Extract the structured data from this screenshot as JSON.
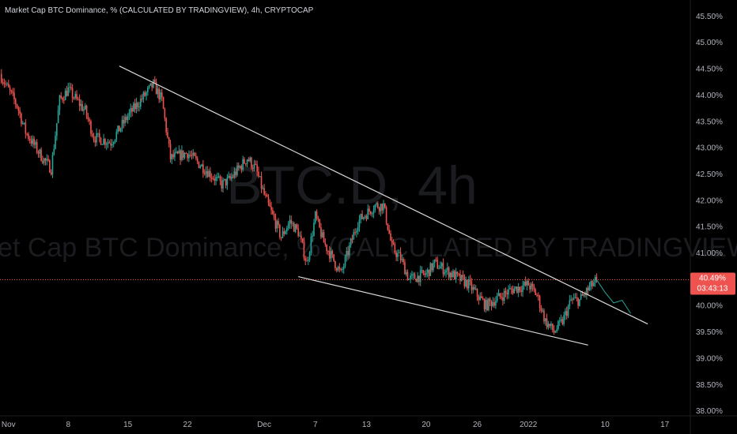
{
  "header": {
    "title": "Market Cap BTC Dominance, % (CALCULATED BY TRADINGVIEW), 4h, CRYPTOCAP"
  },
  "watermark": {
    "symbol": "BTC.D, 4h",
    "description": "Market Cap BTC Dominance, % (CALCULATED BY TRADINGVIEW)"
  },
  "price_badge": {
    "value": "40.49%",
    "countdown": "03:43:13"
  },
  "colors": {
    "up": "#26a69a",
    "down": "#ef5350",
    "trendline": "#d9d9d9",
    "price_line": "#ef5350",
    "axis_text": "#b2b5be"
  },
  "chart_data": {
    "type": "candlestick",
    "title": "Market Cap BTC Dominance, % (CALCULATED BY TRADINGVIEW), 4h, CRYPTOCAP",
    "ylim": [
      37.98,
      45.58
    ],
    "y_ticks": [
      "45.50%",
      "45.00%",
      "44.50%",
      "44.00%",
      "43.50%",
      "43.00%",
      "42.50%",
      "42.00%",
      "41.50%",
      "41.00%",
      "40.50%",
      "40.00%",
      "39.50%",
      "39.00%",
      "38.50%",
      "38.00%"
    ],
    "y_tick_values": [
      45.5,
      45.0,
      44.5,
      44.0,
      43.5,
      43.0,
      42.5,
      42.0,
      41.5,
      41.0,
      40.5,
      40.0,
      39.5,
      39.0,
      38.5,
      38.0
    ],
    "x_ticks": [
      "Nov",
      "8",
      "15",
      "22",
      "Dec",
      "7",
      "13",
      "20",
      "26",
      "2022",
      "10",
      "17"
    ],
    "x_tick_values": [
      "2021-11-01",
      "2021-11-08",
      "2021-11-15",
      "2021-11-22",
      "2021-12-01",
      "2021-12-07",
      "2021-12-13",
      "2021-12-20",
      "2021-12-26",
      "2022-01-01",
      "2022-01-10",
      "2022-01-17"
    ],
    "last_price": 40.49,
    "close_path": [
      [
        "2021-10-31",
        44.4
      ],
      [
        "2021-11-02",
        43.8
      ],
      [
        "2021-11-03",
        43.3
      ],
      [
        "2021-11-05",
        42.8
      ],
      [
        "2021-11-06",
        42.6
      ],
      [
        "2021-11-07",
        43.9
      ],
      [
        "2021-11-08",
        44.1
      ],
      [
        "2021-11-10",
        43.7
      ],
      [
        "2021-11-11",
        43.2
      ],
      [
        "2021-11-13",
        43.1
      ],
      [
        "2021-11-15",
        43.6
      ],
      [
        "2021-11-17",
        44.0
      ],
      [
        "2021-11-18",
        44.2
      ],
      [
        "2021-11-19",
        43.9
      ],
      [
        "2021-11-20",
        42.8
      ],
      [
        "2021-11-22",
        42.9
      ],
      [
        "2021-11-24",
        42.6
      ],
      [
        "2021-11-26",
        42.3
      ],
      [
        "2021-11-27",
        42.4
      ],
      [
        "2021-11-29",
        42.8
      ],
      [
        "2021-11-30",
        42.6
      ],
      [
        "2021-12-01",
        42.1
      ],
      [
        "2021-12-03",
        41.3
      ],
      [
        "2021-12-04",
        41.6
      ],
      [
        "2021-12-05",
        41.4
      ],
      [
        "2021-12-06",
        40.8
      ],
      [
        "2021-12-07",
        41.7
      ],
      [
        "2021-12-08",
        41.2
      ],
      [
        "2021-12-10",
        40.6
      ],
      [
        "2021-12-12",
        41.6
      ],
      [
        "2021-12-14",
        41.9
      ],
      [
        "2021-12-15",
        41.9
      ],
      [
        "2021-12-16",
        41.1
      ],
      [
        "2021-12-17",
        40.9
      ],
      [
        "2021-12-18",
        40.5
      ],
      [
        "2021-12-20",
        40.6
      ],
      [
        "2021-12-21",
        40.8
      ],
      [
        "2021-12-23",
        40.6
      ],
      [
        "2021-12-25",
        40.4
      ],
      [
        "2021-12-27",
        40.0
      ],
      [
        "2021-12-29",
        40.2
      ],
      [
        "2021-12-30",
        40.3
      ],
      [
        "2022-01-01",
        40.4
      ],
      [
        "2022-01-02",
        40.2
      ],
      [
        "2022-01-03",
        39.7
      ],
      [
        "2022-01-04",
        39.5
      ],
      [
        "2022-01-05",
        39.7
      ],
      [
        "2022-01-06",
        40.1
      ],
      [
        "2022-01-07",
        40.1
      ],
      [
        "2022-01-08",
        40.3
      ],
      [
        "2022-01-09",
        40.49
      ]
    ],
    "trendlines": [
      {
        "name": "upper",
        "from": [
          "2021-11-14",
          44.55
        ],
        "to": [
          "2022-01-15",
          39.65
        ]
      },
      {
        "name": "lower",
        "from": [
          "2021-12-05",
          40.55
        ],
        "to": [
          "2022-01-08",
          39.25
        ]
      }
    ],
    "projection": [
      [
        "2022-01-09",
        40.49
      ],
      [
        "2022-01-10",
        40.25
      ],
      [
        "2022-01-11",
        40.05
      ],
      [
        "2022-01-12",
        40.1
      ],
      [
        "2022-01-13",
        39.85
      ]
    ],
    "grid": false
  }
}
